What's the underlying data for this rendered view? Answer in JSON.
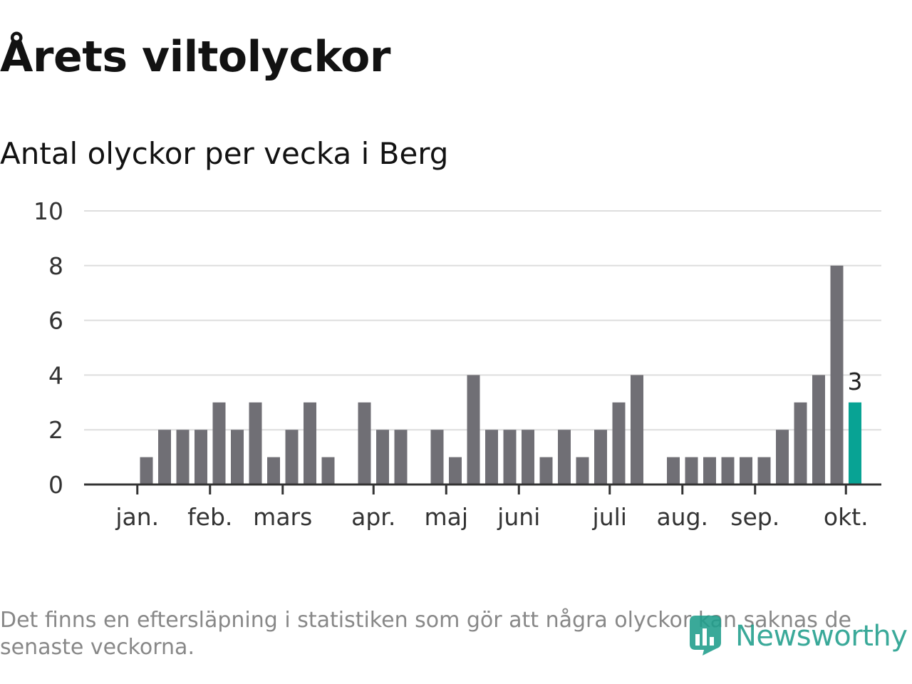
{
  "title": "Årets viltolyckor",
  "subtitle": "Antal olyckor per vecka i Berg",
  "footnote": "Det finns en eftersläpning i statistiken som gör att några olyckor kan saknas de senaste veckorna.",
  "logo": {
    "text": "Newsworthy",
    "icon": "newsworthy-logo-icon"
  },
  "colors": {
    "bar": "#706f75",
    "highlight": "#08a394",
    "grid": "#dedede",
    "axis": "#333333",
    "brand": "#1f9e8c"
  },
  "chart_data": {
    "type": "bar",
    "title": "Antal olyckor per vecka i Berg",
    "xlabel": "",
    "ylabel": "",
    "ylim": [
      0,
      10
    ],
    "yticks": [
      0,
      2,
      4,
      6,
      8,
      10
    ],
    "weeks": [
      1,
      2,
      3,
      4,
      5,
      6,
      7,
      8,
      9,
      10,
      11,
      12,
      13,
      14,
      15,
      16,
      17,
      18,
      19,
      20,
      21,
      22,
      23,
      24,
      25,
      26,
      27,
      28,
      29,
      30,
      31,
      32,
      33,
      34,
      35,
      36,
      37,
      38,
      39,
      40,
      41
    ],
    "values": [
      0,
      1,
      2,
      2,
      2,
      3,
      2,
      3,
      1,
      2,
      3,
      1,
      0,
      3,
      2,
      2,
      0,
      2,
      1,
      4,
      2,
      2,
      2,
      1,
      2,
      1,
      2,
      3,
      4,
      0,
      1,
      1,
      1,
      1,
      1,
      1,
      2,
      3,
      4,
      8,
      3
    ],
    "highlight_index": 40,
    "highlight_label": "3",
    "month_labels": [
      {
        "label": "jan.",
        "week": 1.5
      },
      {
        "label": "feb.",
        "week": 5.5
      },
      {
        "label": "mars",
        "week": 9.5
      },
      {
        "label": "apr.",
        "week": 14.5
      },
      {
        "label": "maj",
        "week": 18.5
      },
      {
        "label": "juni",
        "week": 22.5
      },
      {
        "label": "juli",
        "week": 27.5
      },
      {
        "label": "aug.",
        "week": 31.5
      },
      {
        "label": "sep.",
        "week": 35.5
      },
      {
        "label": "okt.",
        "week": 40.5
      }
    ],
    "grid": true,
    "legend": "none"
  }
}
